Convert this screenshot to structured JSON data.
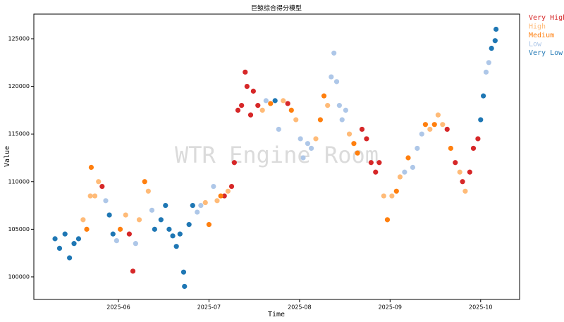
{
  "chart_data": {
    "type": "scatter",
    "title": "巨鲸综合得分模型",
    "x_label": "Time",
    "y_label": "Value",
    "watermark": "WTR Engine Room",
    "xlim": [
      5.066,
      10.43
    ],
    "ylim": [
      97630,
      127590
    ],
    "xticks": [
      {
        "value": 6,
        "label": "2025-06"
      },
      {
        "value": 7,
        "label": "2025-07"
      },
      {
        "value": 8,
        "label": "2025-08"
      },
      {
        "value": 9,
        "label": "2025-09"
      },
      {
        "value": 10,
        "label": "2025-10"
      }
    ],
    "yticks": [
      100000,
      105000,
      110000,
      115000,
      120000,
      125000
    ],
    "legend_position": "outside-upper-right",
    "series": [
      {
        "name": "Very High",
        "color": "#d62728",
        "x": [
          5.82,
          6.12,
          6.16,
          7.17,
          7.25,
          7.28,
          7.32,
          7.36,
          7.4,
          7.42,
          7.46,
          7.49,
          7.54,
          7.87,
          8.69,
          8.74,
          8.79,
          8.84,
          8.88,
          9.63,
          9.72,
          9.8,
          9.88,
          9.92,
          9.97
        ],
        "values": [
          109500,
          104500,
          100600,
          108500,
          109500,
          112000,
          117500,
          118000,
          121500,
          120000,
          117000,
          119500,
          118000,
          118200,
          115500,
          114500,
          112000,
          111000,
          112000,
          115500,
          112000,
          110000,
          111000,
          113500,
          114500
        ]
      },
      {
        "name": "High",
        "color": "#ffbb78",
        "x": [
          5.61,
          5.69,
          5.74,
          5.78,
          6.08,
          6.23,
          6.33,
          6.96,
          7.09,
          7.21,
          7.59,
          7.82,
          7.96,
          8.18,
          8.31,
          8.55,
          8.93,
          9.02,
          9.11,
          9.44,
          9.53,
          9.58,
          9.77,
          9.83
        ],
        "values": [
          106000,
          108500,
          108500,
          110000,
          106500,
          106000,
          109000,
          107800,
          108000,
          109000,
          117500,
          118500,
          116500,
          114500,
          118000,
          115000,
          108500,
          108500,
          110500,
          115500,
          117000,
          116000,
          111000,
          109000
        ]
      },
      {
        "name": "Medium",
        "color": "#ff7f0e",
        "x": [
          5.65,
          5.7,
          6.02,
          6.29,
          7.0,
          7.13,
          7.68,
          7.91,
          8.23,
          8.27,
          8.6,
          8.64,
          8.97,
          9.07,
          9.2,
          9.39,
          9.49,
          9.67
        ],
        "values": [
          105000,
          111500,
          105000,
          110000,
          105500,
          108500,
          118200,
          117500,
          116500,
          119000,
          114000,
          113000,
          106000,
          109000,
          112500,
          116000,
          116000,
          113500
        ]
      },
      {
        "name": "Low",
        "color": "#aec7e8",
        "x": [
          5.86,
          5.98,
          6.19,
          6.37,
          6.87,
          6.91,
          7.05,
          7.63,
          7.77,
          8.01,
          8.04,
          8.09,
          8.13,
          8.35,
          8.38,
          8.41,
          8.44,
          8.47,
          8.51,
          9.16,
          9.25,
          9.3,
          9.35,
          10.06,
          10.09
        ],
        "values": [
          108000,
          103800,
          103500,
          107000,
          106800,
          107500,
          109500,
          118500,
          115500,
          114500,
          112500,
          114000,
          113500,
          121000,
          123500,
          120500,
          118000,
          116500,
          117500,
          111000,
          111500,
          113500,
          115000,
          121500,
          122500
        ]
      },
      {
        "name": "Very Low",
        "color": "#1f77b4",
        "x": [
          5.3,
          5.35,
          5.41,
          5.46,
          5.51,
          5.56,
          5.9,
          5.94,
          6.4,
          6.47,
          6.52,
          6.56,
          6.6,
          6.64,
          6.68,
          6.72,
          6.73,
          6.78,
          6.82,
          7.73,
          10.0,
          10.03,
          10.12,
          10.16,
          10.17
        ],
        "values": [
          104000,
          103000,
          104500,
          102000,
          103500,
          104000,
          106500,
          104500,
          105000,
          106000,
          107500,
          105000,
          104300,
          103200,
          104500,
          100500,
          99000,
          105500,
          107500,
          118500,
          116500,
          119000,
          124000,
          124800,
          126000
        ]
      }
    ]
  }
}
